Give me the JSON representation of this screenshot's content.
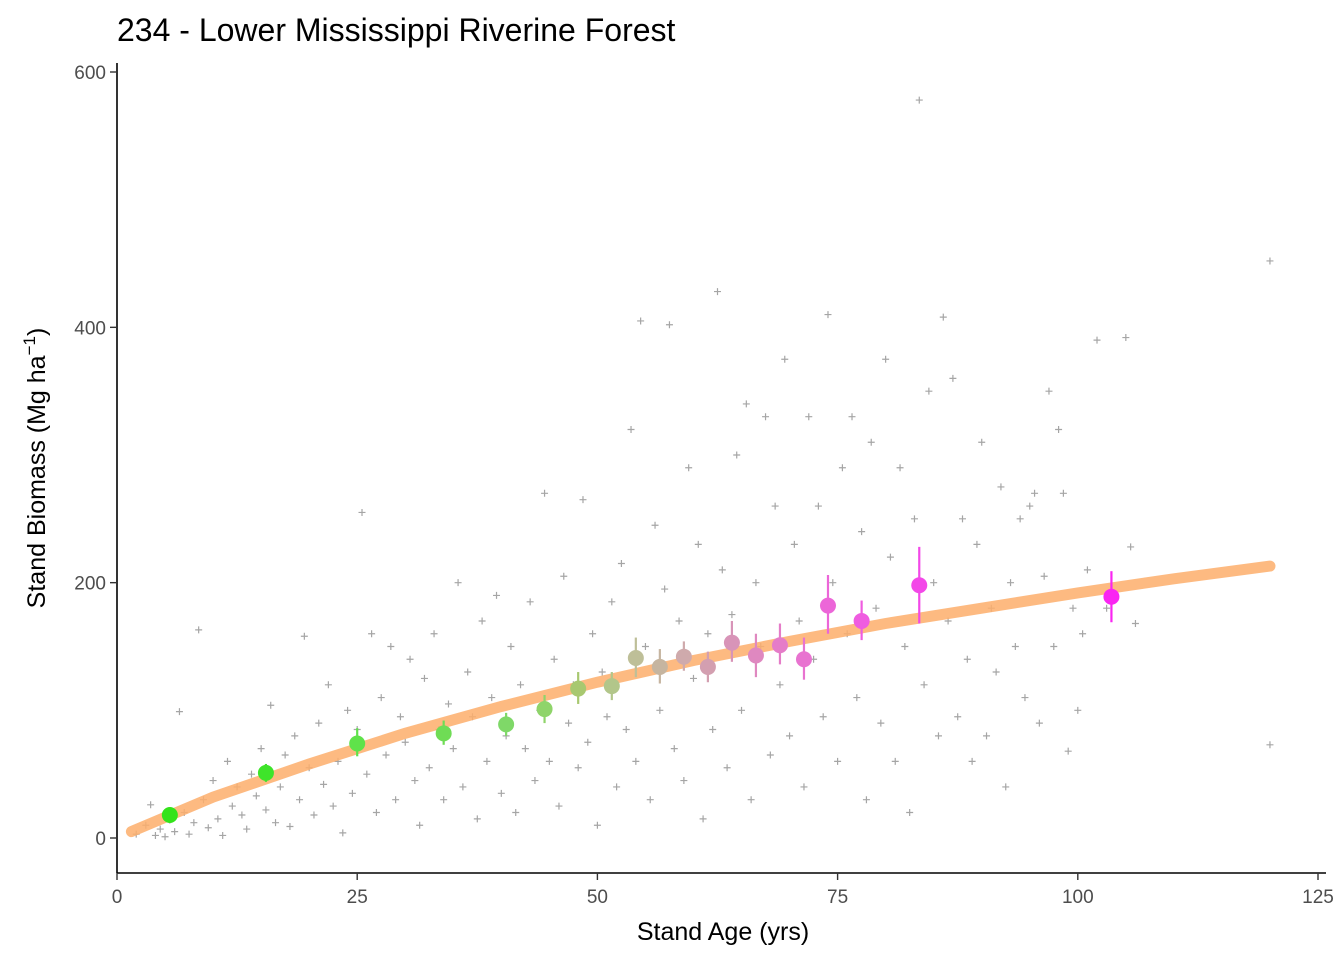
{
  "chart_data": {
    "type": "scatter",
    "title": "234 - Lower Mississippi Riverine Forest",
    "xlabel": "Stand Age (yrs)",
    "ylabel_main": "Stand Biomass (Mg ha",
    "ylabel_sup": "−1",
    "ylabel_close": ")",
    "xlim": [
      0,
      125
    ],
    "ylim": [
      -28,
      608
    ],
    "xticks": [
      0,
      25,
      50,
      75,
      100,
      125
    ],
    "yticks": [
      0,
      200,
      400,
      600
    ],
    "grid": false,
    "legend": "none",
    "fit_line": {
      "color": "#fdae6b",
      "x": [
        1.5,
        10,
        20,
        30,
        40,
        50,
        60,
        70,
        80,
        90,
        100,
        110,
        120
      ],
      "y": [
        5,
        32,
        58,
        82,
        103,
        122,
        139,
        154,
        168,
        180,
        192,
        203,
        213
      ]
    },
    "binned_means": [
      {
        "x": 5.5,
        "y": 18,
        "lo": 13,
        "hi": 24,
        "color": "#33e31a"
      },
      {
        "x": 15.5,
        "y": 51,
        "lo": 44,
        "hi": 58,
        "color": "#3ee42a"
      },
      {
        "x": 25,
        "y": 74,
        "lo": 64,
        "hi": 86,
        "color": "#5fe24a"
      },
      {
        "x": 34,
        "y": 82,
        "lo": 73,
        "hi": 92,
        "color": "#6fdc55"
      },
      {
        "x": 40.5,
        "y": 89,
        "lo": 80,
        "hi": 98,
        "color": "#7fd868"
      },
      {
        "x": 44.5,
        "y": 101,
        "lo": 90,
        "hi": 112,
        "color": "#8fd46a"
      },
      {
        "x": 48,
        "y": 117,
        "lo": 105,
        "hi": 130,
        "color": "#a8c870"
      },
      {
        "x": 51.5,
        "y": 119,
        "lo": 108,
        "hi": 130,
        "color": "#b2c68a"
      },
      {
        "x": 54,
        "y": 141,
        "lo": 126,
        "hi": 157,
        "color": "#bebf98"
      },
      {
        "x": 56.5,
        "y": 134,
        "lo": 121,
        "hi": 148,
        "color": "#c6b5a0"
      },
      {
        "x": 59,
        "y": 142,
        "lo": 131,
        "hi": 154,
        "color": "#cfaaac"
      },
      {
        "x": 61.5,
        "y": 134,
        "lo": 122,
        "hi": 146,
        "color": "#d39fb0"
      },
      {
        "x": 64,
        "y": 153,
        "lo": 138,
        "hi": 170,
        "color": "#d894b8"
      },
      {
        "x": 66.5,
        "y": 143,
        "lo": 126,
        "hi": 160,
        "color": "#df88c0"
      },
      {
        "x": 69,
        "y": 151,
        "lo": 136,
        "hi": 168,
        "color": "#e57cc8"
      },
      {
        "x": 71.5,
        "y": 140,
        "lo": 124,
        "hi": 157,
        "color": "#e873d0"
      },
      {
        "x": 74,
        "y": 182,
        "lo": 160,
        "hi": 206,
        "color": "#ec66d8"
      },
      {
        "x": 77.5,
        "y": 170,
        "lo": 155,
        "hi": 186,
        "color": "#ef5ce0"
      },
      {
        "x": 83.5,
        "y": 198,
        "lo": 168,
        "hi": 228,
        "color": "#f348e8"
      },
      {
        "x": 103.5,
        "y": 189,
        "lo": 169,
        "hi": 209,
        "color": "#fa25f2"
      }
    ],
    "raw_points": [
      [
        2,
        3
      ],
      [
        3,
        10
      ],
      [
        3.5,
        26
      ],
      [
        4,
        2
      ],
      [
        4.5,
        7
      ],
      [
        5,
        1
      ],
      [
        5.5,
        14
      ],
      [
        6,
        5
      ],
      [
        6.5,
        99
      ],
      [
        7,
        20
      ],
      [
        7.5,
        3
      ],
      [
        8,
        12
      ],
      [
        8.5,
        163
      ],
      [
        9,
        30
      ],
      [
        9.5,
        8
      ],
      [
        10,
        45
      ],
      [
        10.5,
        15
      ],
      [
        11,
        2
      ],
      [
        11.5,
        60
      ],
      [
        12,
        25
      ],
      [
        12.5,
        40
      ],
      [
        13,
        18
      ],
      [
        13.5,
        7
      ],
      [
        14,
        50
      ],
      [
        14.5,
        33
      ],
      [
        15,
        70
      ],
      [
        15.5,
        22
      ],
      [
        16,
        104
      ],
      [
        16.5,
        12
      ],
      [
        17,
        40
      ],
      [
        17.5,
        65
      ],
      [
        18,
        9
      ],
      [
        18.5,
        80
      ],
      [
        19,
        30
      ],
      [
        19.5,
        158
      ],
      [
        20,
        55
      ],
      [
        20.5,
        18
      ],
      [
        21,
        90
      ],
      [
        21.5,
        42
      ],
      [
        22,
        120
      ],
      [
        22.5,
        25
      ],
      [
        23,
        60
      ],
      [
        23.5,
        4
      ],
      [
        24,
        100
      ],
      [
        24.5,
        35
      ],
      [
        25,
        85
      ],
      [
        25.5,
        255
      ],
      [
        26,
        50
      ],
      [
        26.5,
        160
      ],
      [
        27,
        20
      ],
      [
        27.5,
        110
      ],
      [
        28,
        65
      ],
      [
        28.5,
        150
      ],
      [
        29,
        30
      ],
      [
        29.5,
        95
      ],
      [
        30,
        75
      ],
      [
        30.5,
        140
      ],
      [
        31,
        45
      ],
      [
        31.5,
        10
      ],
      [
        32,
        125
      ],
      [
        32.5,
        55
      ],
      [
        33,
        160
      ],
      [
        33.5,
        85
      ],
      [
        34,
        30
      ],
      [
        34.5,
        105
      ],
      [
        35,
        70
      ],
      [
        35.5,
        200
      ],
      [
        36,
        40
      ],
      [
        36.5,
        130
      ],
      [
        37,
        95
      ],
      [
        37.5,
        15
      ],
      [
        38,
        170
      ],
      [
        38.5,
        60
      ],
      [
        39,
        110
      ],
      [
        39.5,
        190
      ],
      [
        40,
        35
      ],
      [
        40.5,
        80
      ],
      [
        41,
        150
      ],
      [
        41.5,
        20
      ],
      [
        42,
        120
      ],
      [
        42.5,
        70
      ],
      [
        43,
        185
      ],
      [
        43.5,
        45
      ],
      [
        44,
        100
      ],
      [
        44.5,
        270
      ],
      [
        45,
        60
      ],
      [
        45.5,
        140
      ],
      [
        46,
        25
      ],
      [
        46.5,
        205
      ],
      [
        47,
        90
      ],
      [
        47.5,
        120
      ],
      [
        48,
        55
      ],
      [
        48.5,
        265
      ],
      [
        49,
        75
      ],
      [
        49.5,
        160
      ],
      [
        50,
        10
      ],
      [
        50.5,
        130
      ],
      [
        51,
        95
      ],
      [
        51.5,
        185
      ],
      [
        52,
        40
      ],
      [
        52.5,
        215
      ],
      [
        53,
        85
      ],
      [
        53.5,
        320
      ],
      [
        54,
        60
      ],
      [
        54.5,
        405
      ],
      [
        55,
        150
      ],
      [
        55.5,
        30
      ],
      [
        56,
        245
      ],
      [
        56.5,
        100
      ],
      [
        57,
        195
      ],
      [
        57.5,
        402
      ],
      [
        58,
        70
      ],
      [
        58.5,
        170
      ],
      [
        59,
        45
      ],
      [
        59.5,
        290
      ],
      [
        60,
        125
      ],
      [
        60.5,
        230
      ],
      [
        61,
        15
      ],
      [
        61.5,
        160
      ],
      [
        62,
        85
      ],
      [
        62.5,
        428
      ],
      [
        63,
        210
      ],
      [
        63.5,
        55
      ],
      [
        64,
        175
      ],
      [
        64.5,
        300
      ],
      [
        65,
        100
      ],
      [
        65.5,
        340
      ],
      [
        66,
        30
      ],
      [
        66.5,
        200
      ],
      [
        67,
        150
      ],
      [
        67.5,
        330
      ],
      [
        68,
        65
      ],
      [
        68.5,
        260
      ],
      [
        69,
        120
      ],
      [
        69.5,
        375
      ],
      [
        70,
        80
      ],
      [
        70.5,
        230
      ],
      [
        71,
        170
      ],
      [
        71.5,
        40
      ],
      [
        72,
        330
      ],
      [
        72.5,
        140
      ],
      [
        73,
        260
      ],
      [
        73.5,
        95
      ],
      [
        74,
        410
      ],
      [
        74.5,
        200
      ],
      [
        75,
        60
      ],
      [
        75.5,
        290
      ],
      [
        76,
        160
      ],
      [
        76.5,
        330
      ],
      [
        77,
        110
      ],
      [
        77.5,
        240
      ],
      [
        78,
        30
      ],
      [
        78.5,
        310
      ],
      [
        79,
        180
      ],
      [
        79.5,
        90
      ],
      [
        80,
        375
      ],
      [
        80.5,
        220
      ],
      [
        81,
        60
      ],
      [
        81.5,
        290
      ],
      [
        82,
        150
      ],
      [
        82.5,
        20
      ],
      [
        83,
        250
      ],
      [
        83.5,
        578
      ],
      [
        84,
        120
      ],
      [
        84.5,
        350
      ],
      [
        85,
        200
      ],
      [
        85.5,
        80
      ],
      [
        86,
        408
      ],
      [
        86.5,
        170
      ],
      [
        87,
        360
      ],
      [
        87.5,
        95
      ],
      [
        88,
        250
      ],
      [
        88.5,
        140
      ],
      [
        89,
        60
      ],
      [
        89.5,
        230
      ],
      [
        90,
        310
      ],
      [
        90.5,
        80
      ],
      [
        91,
        180
      ],
      [
        91.5,
        130
      ],
      [
        92,
        275
      ],
      [
        92.5,
        40
      ],
      [
        93,
        200
      ],
      [
        93.5,
        150
      ],
      [
        94,
        250
      ],
      [
        94.5,
        110
      ],
      [
        95,
        260
      ],
      [
        95.5,
        270
      ],
      [
        96,
        90
      ],
      [
        96.5,
        205
      ],
      [
        97,
        350
      ],
      [
        97.5,
        150
      ],
      [
        98,
        320
      ],
      [
        98.5,
        270
      ],
      [
        99,
        68
      ],
      [
        99.5,
        180
      ],
      [
        100,
        100
      ],
      [
        100.5,
        160
      ],
      [
        101,
        210
      ],
      [
        102,
        390
      ],
      [
        103,
        180
      ],
      [
        105,
        392
      ],
      [
        105.5,
        228
      ],
      [
        106,
        168
      ],
      [
        120,
        452
      ],
      [
        120,
        73
      ]
    ]
  }
}
